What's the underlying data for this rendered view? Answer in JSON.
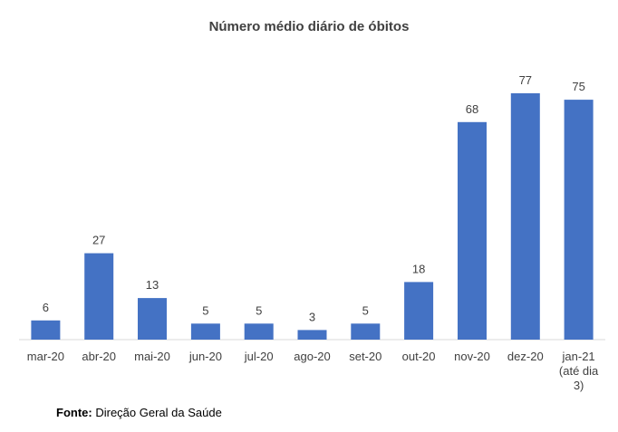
{
  "chart_data": {
    "type": "bar",
    "title": "Número médio diário de óbitos",
    "xlabel": "",
    "ylabel": "",
    "ylim": [
      0,
      80
    ],
    "grid": false,
    "categories": [
      "mar-20",
      "abr-20",
      "mai-20",
      "jun-20",
      "jul-20",
      "ago-20",
      "set-20",
      "out-20",
      "nov-20",
      "dez-20",
      [
        "jan-21",
        "(até dia",
        "3)"
      ]
    ],
    "values": [
      6,
      27,
      13,
      5,
      5,
      3,
      5,
      18,
      68,
      77,
      75
    ],
    "bar_color": "#4472C4"
  },
  "source": {
    "label": "Fonte:",
    "text": "Direção Geral da Saúde"
  }
}
